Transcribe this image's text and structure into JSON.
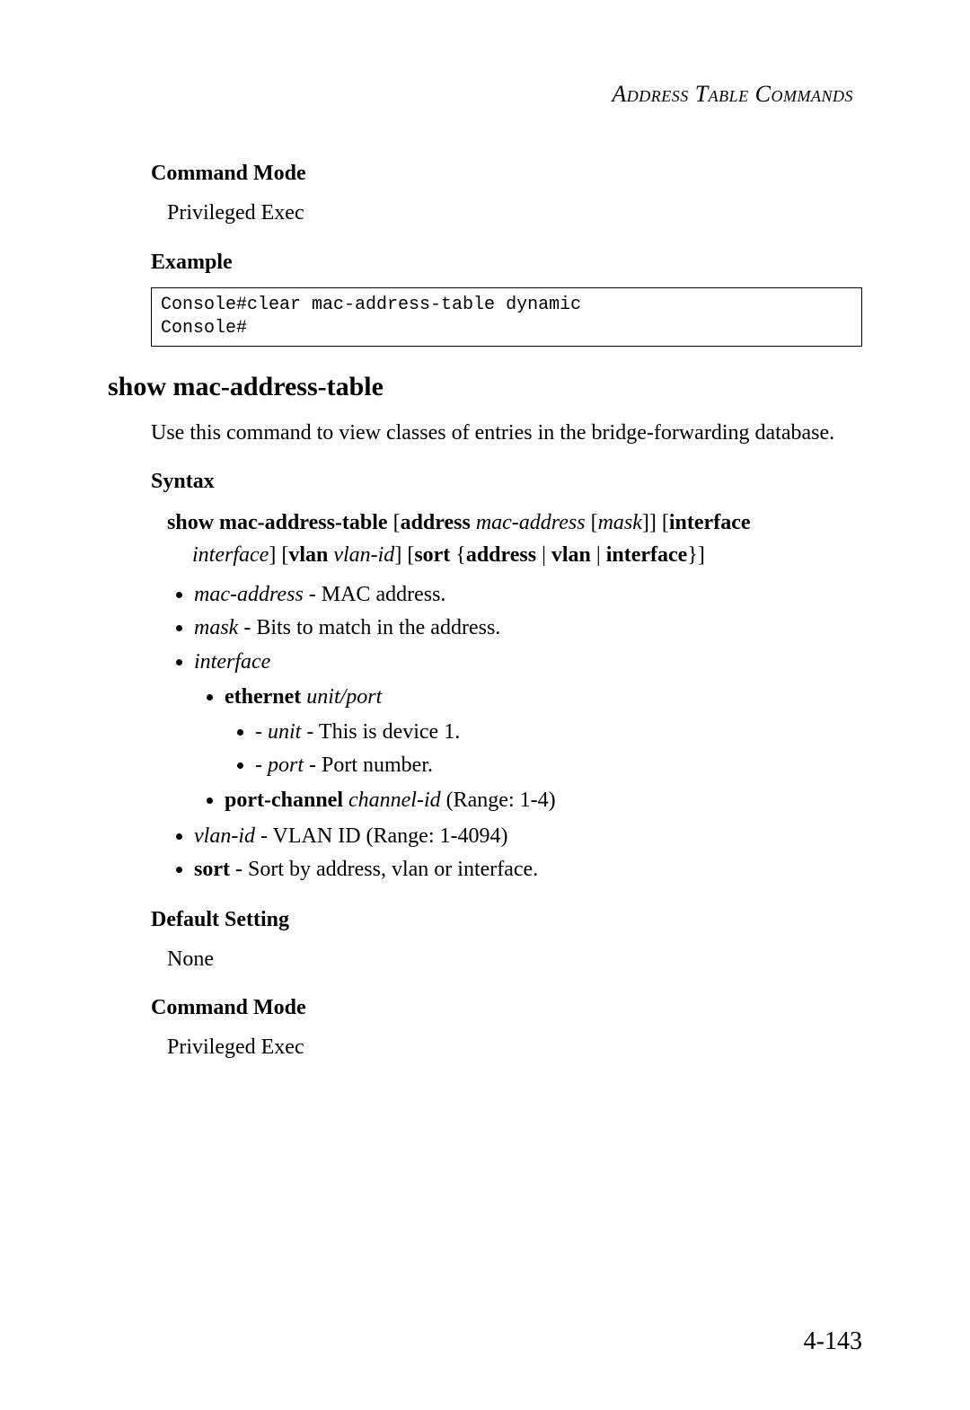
{
  "running_head": "Address Table Commands",
  "cmd_mode_head1": "Command Mode",
  "cmd_mode_text1": "Privileged Exec",
  "example_head": "Example",
  "code_example": "Console#clear mac-address-table dynamic\nConsole#",
  "section_title": "show mac-address-table",
  "section_intro": "Use this command to view classes of entries in the bridge-forwarding database.",
  "syntax_head": "Syntax",
  "syntax": {
    "cmd": "show mac-address-table",
    "addr_kw": "address",
    "mac_addr": "mac-address",
    "mask": "mask",
    "iface_kw": "interface",
    "iface": "interface",
    "vlan_kw": "vlan",
    "vlan_id": "vlan-id",
    "sort_kw": "sort",
    "address_opt": "address",
    "vlan_opt": "vlan",
    "iface_opt": "interface"
  },
  "params": {
    "mac_addr_label": "mac-address",
    "mac_addr_desc": " - MAC address.",
    "mask_label": "mask",
    "mask_desc": " - Bits to match in the address.",
    "iface_label": "interface",
    "eth_label": "ethernet",
    "eth_arg": "unit/port",
    "unit_label": "unit",
    "unit_desc": " - This is device 1.",
    "port_label": "port",
    "port_desc": " - Port number.",
    "pc_label": "port-channel",
    "pc_arg": "channel-id",
    "pc_desc": " (Range: 1-4)",
    "vlan_label": "vlan-id",
    "vlan_desc": " - VLAN ID (Range: 1-4094)",
    "sort_label": "sort",
    "sort_desc": " - Sort by address, vlan or interface."
  },
  "default_head": "Default Setting",
  "default_text": "None",
  "cmd_mode_head2": "Command Mode",
  "cmd_mode_text2": "Privileged Exec",
  "page_number": "4-143"
}
